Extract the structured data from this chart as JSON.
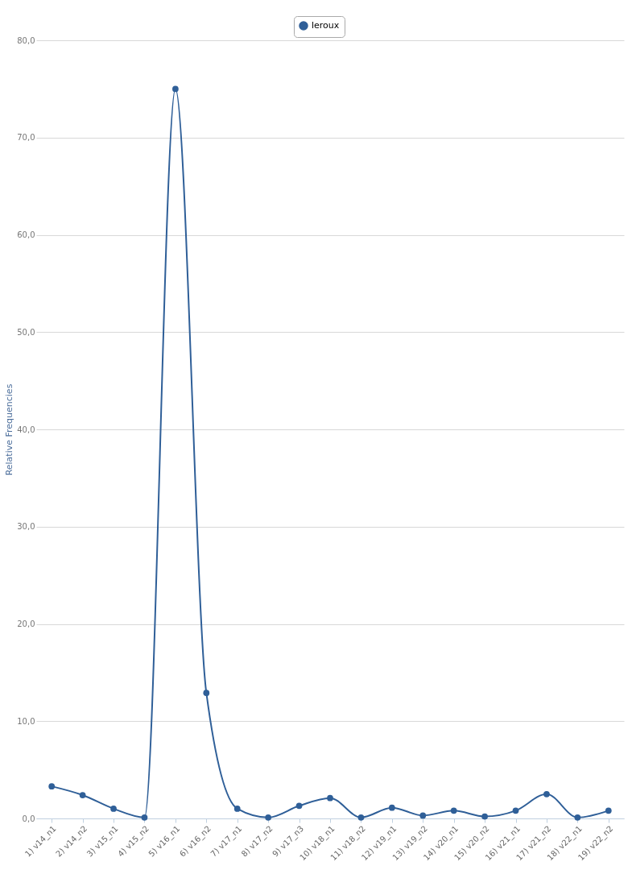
{
  "chart_data": {
    "type": "line",
    "ylabel": "Relative Frequencies",
    "categories": [
      "1) v14_n1",
      "2) v14_n2",
      "3) v15_n1",
      "4) v15_n2",
      "5) v16_n1",
      "6) v16_n2",
      "7) v17_n1",
      "8) v17_n2",
      "9) v17_n3",
      "10) v18_n1",
      "11) v18_n2",
      "12) v19_n1",
      "13) v19_n2",
      "14) v20_n1",
      "15) v20_n2",
      "16) v21_n1",
      "17) v21_n2",
      "18) v22_n1",
      "19) v22_n2"
    ],
    "series": [
      {
        "name": "leroux",
        "color": "#2f5f98",
        "values": [
          3.3,
          2.4,
          1.0,
          0.1,
          75.0,
          12.9,
          1.0,
          0.1,
          1.3,
          2.1,
          0.1,
          1.1,
          0.3,
          0.8,
          0.2,
          0.8,
          2.5,
          0.1,
          0.8
        ]
      }
    ],
    "ylim": [
      0,
      80
    ],
    "yticks": [
      {
        "value": 0,
        "label": "0,0"
      },
      {
        "value": 10,
        "label": "10,0"
      },
      {
        "value": 20,
        "label": "20,0"
      },
      {
        "value": 30,
        "label": "30,0"
      },
      {
        "value": 40,
        "label": "40,0"
      },
      {
        "value": 50,
        "label": "50,0"
      },
      {
        "value": 60,
        "label": "60,0"
      },
      {
        "value": 70,
        "label": "70,0"
      },
      {
        "value": 80,
        "label": "80,0"
      }
    ],
    "grid": "y",
    "legend": "top",
    "marker": "circle",
    "line_style": "solid"
  }
}
